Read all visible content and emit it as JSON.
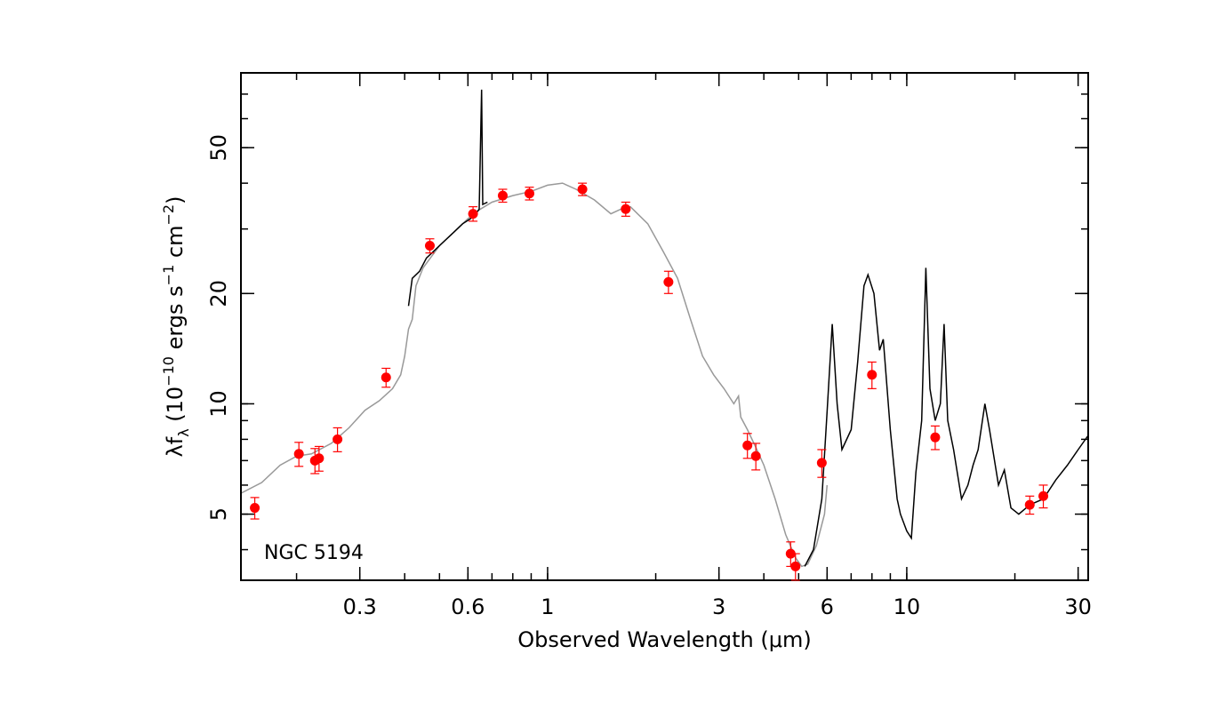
{
  "chart_data": {
    "type": "scatter",
    "annotation": "NGC 5194",
    "xlabel": "Observed Wavelength (μm)",
    "ylabel": {
      "prefix": "λf",
      "sub": "λ",
      "open": " (10",
      "exp1": "−10",
      "mid": " ergs s",
      "exp2": "−1",
      "mid2": " cm",
      "exp3": "−2",
      "close": ")"
    },
    "x_scale": "log",
    "y_scale": "log",
    "xlim": [
      0.14,
      32
    ],
    "ylim": [
      3.3,
      80
    ],
    "x_tick_labels": [
      {
        "value": 0.3,
        "label": "0.3"
      },
      {
        "value": 0.6,
        "label": "0.6"
      },
      {
        "value": 1,
        "label": "1"
      },
      {
        "value": 3,
        "label": "3"
      },
      {
        "value": 6,
        "label": "6"
      },
      {
        "value": 10,
        "label": "10"
      },
      {
        "value": 30,
        "label": "30"
      }
    ],
    "y_tick_labels": [
      {
        "value": 5,
        "label": "5"
      },
      {
        "value": 10,
        "label": "10"
      },
      {
        "value": 20,
        "label": "20"
      },
      {
        "value": 50,
        "label": "50"
      }
    ],
    "colors": {
      "points": "#ff0000",
      "observed": "#000000",
      "model": "#999999"
    },
    "photometry": [
      {
        "x": 0.153,
        "y": 5.2,
        "err": 0.35
      },
      {
        "x": 0.203,
        "y": 7.3,
        "err": 0.55
      },
      {
        "x": 0.225,
        "y": 7.0,
        "err": 0.55
      },
      {
        "x": 0.231,
        "y": 7.1,
        "err": 0.55
      },
      {
        "x": 0.26,
        "y": 8.0,
        "err": 0.6
      },
      {
        "x": 0.355,
        "y": 11.8,
        "err": 0.7
      },
      {
        "x": 0.47,
        "y": 27.0,
        "err": 1.2
      },
      {
        "x": 0.62,
        "y": 33.0,
        "err": 1.5
      },
      {
        "x": 0.75,
        "y": 37.0,
        "err": 1.5
      },
      {
        "x": 0.89,
        "y": 37.5,
        "err": 1.5
      },
      {
        "x": 1.25,
        "y": 38.5,
        "err": 1.5
      },
      {
        "x": 1.65,
        "y": 34.0,
        "err": 1.5
      },
      {
        "x": 2.17,
        "y": 21.5,
        "err": 1.5
      },
      {
        "x": 3.6,
        "y": 7.7,
        "err": 0.6
      },
      {
        "x": 3.8,
        "y": 7.2,
        "err": 0.6
      },
      {
        "x": 4.75,
        "y": 3.9,
        "err": 0.3
      },
      {
        "x": 4.9,
        "y": 3.6,
        "err": 0.3
      },
      {
        "x": 5.8,
        "y": 6.9,
        "err": 0.6
      },
      {
        "x": 8.0,
        "y": 12.0,
        "err": 1.0
      },
      {
        "x": 12.0,
        "y": 8.1,
        "err": 0.6
      },
      {
        "x": 22.0,
        "y": 5.3,
        "err": 0.3
      },
      {
        "x": 24.0,
        "y": 5.6,
        "err": 0.4
      }
    ],
    "model_spectrum": [
      [
        0.14,
        5.7
      ],
      [
        0.16,
        6.1
      ],
      [
        0.18,
        6.8
      ],
      [
        0.2,
        7.2
      ],
      [
        0.22,
        7.3
      ],
      [
        0.25,
        7.8
      ],
      [
        0.28,
        8.6
      ],
      [
        0.31,
        9.6
      ],
      [
        0.34,
        10.2
      ],
      [
        0.37,
        11.0
      ],
      [
        0.39,
        12.0
      ],
      [
        0.4,
        13.5
      ],
      [
        0.41,
        16.0
      ],
      [
        0.42,
        17.0
      ],
      [
        0.43,
        21.0
      ],
      [
        0.45,
        23.5
      ],
      [
        0.5,
        27.0
      ],
      [
        0.55,
        29.5
      ],
      [
        0.6,
        32.0
      ],
      [
        0.65,
        34.0
      ],
      [
        0.7,
        35.5
      ],
      [
        0.8,
        37.0
      ],
      [
        0.9,
        38.0
      ],
      [
        1.0,
        39.5
      ],
      [
        1.1,
        40.0
      ],
      [
        1.2,
        38.5
      ],
      [
        1.35,
        36.0
      ],
      [
        1.5,
        33.0
      ],
      [
        1.6,
        34.0
      ],
      [
        1.7,
        34.5
      ],
      [
        1.9,
        31.0
      ],
      [
        2.1,
        26.0
      ],
      [
        2.3,
        22.0
      ],
      [
        2.5,
        17.0
      ],
      [
        2.7,
        13.5
      ],
      [
        2.9,
        12.0
      ],
      [
        3.1,
        11.0
      ],
      [
        3.3,
        10.0
      ],
      [
        3.4,
        10.5
      ],
      [
        3.45,
        9.2
      ],
      [
        3.6,
        8.5
      ],
      [
        3.8,
        7.6
      ],
      [
        4.0,
        6.8
      ],
      [
        4.3,
        5.5
      ],
      [
        4.6,
        4.4
      ],
      [
        4.9,
        3.8
      ],
      [
        5.1,
        3.6
      ],
      [
        5.3,
        3.65
      ],
      [
        5.6,
        4.1
      ],
      [
        5.9,
        5.0
      ],
      [
        6.0,
        6.0
      ]
    ],
    "observed_optical": [
      [
        0.41,
        18.5
      ],
      [
        0.42,
        22.0
      ],
      [
        0.44,
        23.0
      ],
      [
        0.46,
        25.0
      ],
      [
        0.48,
        26.0
      ],
      [
        0.5,
        27.0
      ],
      [
        0.52,
        28.0
      ],
      [
        0.55,
        29.5
      ],
      [
        0.58,
        31.0
      ],
      [
        0.61,
        32.0
      ],
      [
        0.63,
        33.0
      ],
      [
        0.645,
        34.0
      ],
      [
        0.655,
        72.0
      ],
      [
        0.66,
        35.0
      ],
      [
        0.68,
        35.5
      ]
    ],
    "observed_ir": [
      [
        5.2,
        3.6
      ],
      [
        5.5,
        4.0
      ],
      [
        5.8,
        5.5
      ],
      [
        6.0,
        9.5
      ],
      [
        6.2,
        16.5
      ],
      [
        6.4,
        10.0
      ],
      [
        6.6,
        7.5
      ],
      [
        7.0,
        8.5
      ],
      [
        7.3,
        13.0
      ],
      [
        7.6,
        21.0
      ],
      [
        7.8,
        22.5
      ],
      [
        8.1,
        20.0
      ],
      [
        8.4,
        14.0
      ],
      [
        8.6,
        15.0
      ],
      [
        9.0,
        8.5
      ],
      [
        9.4,
        5.5
      ],
      [
        9.6,
        5.0
      ],
      [
        10.0,
        4.5
      ],
      [
        10.3,
        4.3
      ],
      [
        10.6,
        6.5
      ],
      [
        11.0,
        9.0
      ],
      [
        11.3,
        23.5
      ],
      [
        11.6,
        11.0
      ],
      [
        12.0,
        9.0
      ],
      [
        12.4,
        10.0
      ],
      [
        12.7,
        16.5
      ],
      [
        13.0,
        9.0
      ],
      [
        13.5,
        7.5
      ],
      [
        14.2,
        5.5
      ],
      [
        14.8,
        6.0
      ],
      [
        15.3,
        6.8
      ],
      [
        15.8,
        7.5
      ],
      [
        16.5,
        10.0
      ],
      [
        17.0,
        8.5
      ],
      [
        18.0,
        6.0
      ],
      [
        18.7,
        6.6
      ],
      [
        19.5,
        5.2
      ],
      [
        20.5,
        5.0
      ],
      [
        22.0,
        5.3
      ],
      [
        24.0,
        5.5
      ],
      [
        26.0,
        6.2
      ],
      [
        28.0,
        6.8
      ],
      [
        30.0,
        7.5
      ],
      [
        32.0,
        8.2
      ]
    ]
  }
}
